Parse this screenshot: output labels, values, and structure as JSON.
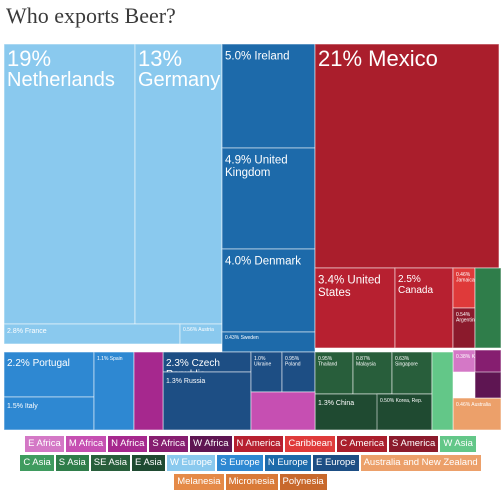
{
  "chart_data": {
    "type": "treemap",
    "title": "Who exports Beer?",
    "regions": [
      {
        "name": "E Africa",
        "color": "#d478c6"
      },
      {
        "name": "M Africa",
        "color": "#c64fb2"
      },
      {
        "name": "N Africa",
        "color": "#a6288e"
      },
      {
        "name": "S Africa",
        "color": "#861e70"
      },
      {
        "name": "W Africa",
        "color": "#5e1552"
      },
      {
        "name": "N America",
        "color": "#b72030"
      },
      {
        "name": "Caribbean",
        "color": "#df3a3a"
      },
      {
        "name": "C America",
        "color": "#aa1e2c"
      },
      {
        "name": "S America",
        "color": "#8b1a2c"
      },
      {
        "name": "W Asia",
        "color": "#63c788"
      },
      {
        "name": "C Asia",
        "color": "#3f9b5f"
      },
      {
        "name": "S Asia",
        "color": "#2f7d4a"
      },
      {
        "name": "SE Asia",
        "color": "#285e3b"
      },
      {
        "name": "E Asia",
        "color": "#1f4a31"
      },
      {
        "name": "W Europe",
        "color": "#8ac9ee"
      },
      {
        "name": "S Europe",
        "color": "#2e88d2"
      },
      {
        "name": "N Europe",
        "color": "#1d6aaa"
      },
      {
        "name": "E Europe",
        "color": "#1d4e84"
      },
      {
        "name": "Australia and New Zealand",
        "color": "#eca06a"
      },
      {
        "name": "Melanesia",
        "color": "#e58a48"
      },
      {
        "name": "Micronesia",
        "color": "#d97a38"
      },
      {
        "name": "Polynesia",
        "color": "#c8692c"
      }
    ],
    "cells": [
      {
        "name": "Netherlands",
        "share": 19,
        "share_label": "19%",
        "region": "W Europe",
        "label_size": "xl"
      },
      {
        "name": "Germany",
        "share": 13,
        "share_label": "13%",
        "region": "W Europe",
        "label_size": "xl"
      },
      {
        "name": "France",
        "share": 2.8,
        "share_label": "2.8%",
        "region": "W Europe",
        "label_size": "xs"
      },
      {
        "name": "Austria",
        "share": 0.56,
        "share_label": "0.56%",
        "region": "W Europe",
        "label_size": "xxs"
      },
      {
        "name": "Ireland",
        "share": 5.0,
        "share_label": "5.0%",
        "region": "N Europe",
        "label_size": "m"
      },
      {
        "name": "United Kingdom",
        "share": 4.9,
        "share_label": "4.9%",
        "region": "N Europe",
        "label_size": "m"
      },
      {
        "name": "Denmark",
        "share": 4.0,
        "share_label": "4.0%",
        "region": "N Europe",
        "label_size": "m"
      },
      {
        "name": "Sweden",
        "share": 0.43,
        "share_label": "0.43%",
        "region": "N Europe",
        "label_size": "xxs"
      },
      {
        "name": "Mexico",
        "share": 21,
        "share_label": "21%",
        "region": "C America",
        "label_size": "xl"
      },
      {
        "name": "United States",
        "share": 3.4,
        "share_label": "3.4%",
        "region": "N America",
        "label_size": "m"
      },
      {
        "name": "Canada",
        "share": 2.5,
        "share_label": "2.5%",
        "region": "N America",
        "label_size": "s"
      },
      {
        "name": "Jamaica",
        "share": 0.46,
        "share_label": "0.46%",
        "region": "Caribbean",
        "label_size": "xxs"
      },
      {
        "name": "Argentina",
        "share": 0.54,
        "share_label": "0.54%",
        "region": "S America",
        "label_size": "xxs"
      },
      {
        "name": "Portugal",
        "share": 2.2,
        "share_label": "2.2%",
        "region": "S Europe",
        "label_size": "s"
      },
      {
        "name": "Italy",
        "share": 1.5,
        "share_label": "1.5%",
        "region": "S Europe",
        "label_size": "xs"
      },
      {
        "name": "Spain",
        "share": 1.1,
        "share_label": "1.1%",
        "region": "S Europe",
        "label_size": "xxs"
      },
      {
        "name": "Czech Republic",
        "share": 2.3,
        "share_label": "2.3%",
        "region": "E Europe",
        "label_size": "s"
      },
      {
        "name": "Russia",
        "share": 1.3,
        "share_label": "1.3%",
        "region": "E Europe",
        "label_size": "xs"
      },
      {
        "name": "Ukraine",
        "share": 1.0,
        "share_label": "1.0%",
        "region": "E Europe",
        "label_size": "xxs"
      },
      {
        "name": "Poland",
        "share": 0.95,
        "share_label": "0.95%",
        "region": "E Europe",
        "label_size": "xxs"
      },
      {
        "name": "Thailand",
        "share": 0.95,
        "share_label": "0.95%",
        "region": "SE Asia",
        "label_size": "xxs"
      },
      {
        "name": "Malaysia",
        "share": 0.87,
        "share_label": "0.87%",
        "region": "SE Asia",
        "label_size": "xxs"
      },
      {
        "name": "Singapore",
        "share": 0.63,
        "share_label": "0.63%",
        "region": "SE Asia",
        "label_size": "xxs"
      },
      {
        "name": "China",
        "share": 1.3,
        "share_label": "1.3%",
        "region": "E Asia",
        "label_size": "xs"
      },
      {
        "name": "Korea, Rep.",
        "share": 0.5,
        "share_label": "0.50%",
        "region": "E Asia",
        "label_size": "xxs"
      },
      {
        "name": "Kenya",
        "share": 0.38,
        "share_label": "0.38%",
        "region": "E Africa",
        "label_size": "xxs"
      },
      {
        "name": "Australia",
        "share": 0.46,
        "share_label": "0.46%",
        "region": "Australia and New Zealand",
        "label_size": "xxs"
      },
      {
        "name": "",
        "share_label": "",
        "region": "W Asia"
      },
      {
        "name": "",
        "share_label": "",
        "region": "S Asia"
      },
      {
        "name": "",
        "share_label": "",
        "region": "S Africa"
      },
      {
        "name": "",
        "share_label": "",
        "region": "N Africa"
      },
      {
        "name": "",
        "share_label": "",
        "region": "M Africa"
      },
      {
        "name": "",
        "share_label": "",
        "region": "W Africa"
      }
    ]
  }
}
